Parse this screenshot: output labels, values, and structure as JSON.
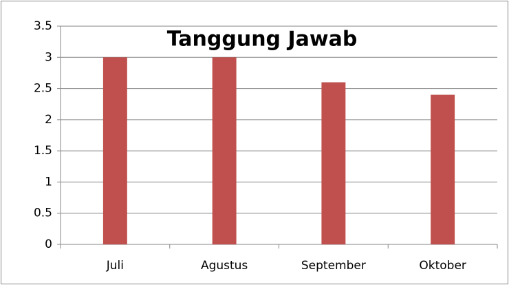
{
  "chart_data": {
    "type": "bar",
    "title": "Tanggung Jawab",
    "categories": [
      "Juli",
      "Agustus",
      "September",
      "Oktober"
    ],
    "values": [
      3,
      3,
      2.6,
      2.4
    ],
    "color": "#c0504d",
    "ylim": [
      0,
      3.5
    ],
    "yticks": [
      0,
      0.5,
      1,
      1.5,
      2,
      2.5,
      3,
      3.5
    ],
    "grid": true
  }
}
